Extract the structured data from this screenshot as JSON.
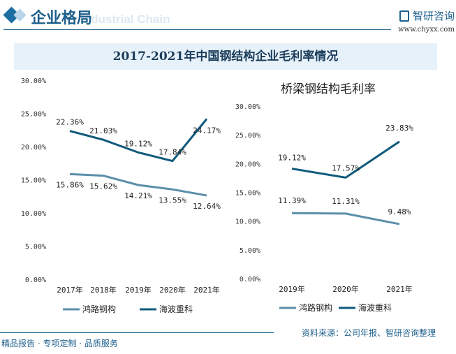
{
  "header": {
    "section_title": "企业格局",
    "ghost_text": "Industrial Chain",
    "logo_name": "智研咨询",
    "logo_url": "www.chyxx.com"
  },
  "title": "2017-2021年中国钢结构企业毛利率情况",
  "footer": {
    "left": "精品报告 · 专项定制 · 品质服务",
    "source": "资料来源：公司年报、智研咨询整理"
  },
  "colors": {
    "鸿路钢构": "#5b8fab",
    "海波重科": "#0f5a7c",
    "accent": "#1d5f8c"
  },
  "chart_data": [
    {
      "type": "line",
      "title": "",
      "categories": [
        "2017年",
        "2018年",
        "2019年",
        "2020年",
        "2021年"
      ],
      "ylim": [
        0,
        30
      ],
      "yticks": [
        "0.00%",
        "5.00%",
        "10.00%",
        "15.00%",
        "20.00%",
        "25.00%",
        "30.00%"
      ],
      "grid": false,
      "legend": "bottom",
      "series": [
        {
          "name": "鸿路钢构",
          "values": [
            15.86,
            15.62,
            14.21,
            13.55,
            12.64
          ],
          "labels": [
            "15.86%",
            "15.62%",
            "14.21%",
            "13.55%",
            "12.64%"
          ]
        },
        {
          "name": "海波重科",
          "values": [
            22.36,
            21.03,
            19.12,
            17.84,
            24.17
          ],
          "labels": [
            "22.36%",
            "21.03%",
            "19.12%",
            "17.84%",
            "24.17%"
          ]
        }
      ]
    },
    {
      "type": "line",
      "title": "桥梁钢结构毛利率",
      "categories": [
        "2019年",
        "2020年",
        "2021年"
      ],
      "ylim": [
        0,
        30
      ],
      "yticks": [
        "0.00%",
        "5.00%",
        "10.00%",
        "15.00%",
        "20.00%",
        "25.00%",
        "30.00%"
      ],
      "grid": false,
      "legend": "bottom",
      "series": [
        {
          "name": "鸿路钢构",
          "values": [
            11.39,
            11.31,
            9.48
          ],
          "labels": [
            "11.39%",
            "11.31%",
            "9.48%"
          ]
        },
        {
          "name": "海波重科",
          "values": [
            19.12,
            17.57,
            23.83
          ],
          "labels": [
            "19.12%",
            "17.57%",
            "23.83%"
          ]
        }
      ]
    }
  ]
}
